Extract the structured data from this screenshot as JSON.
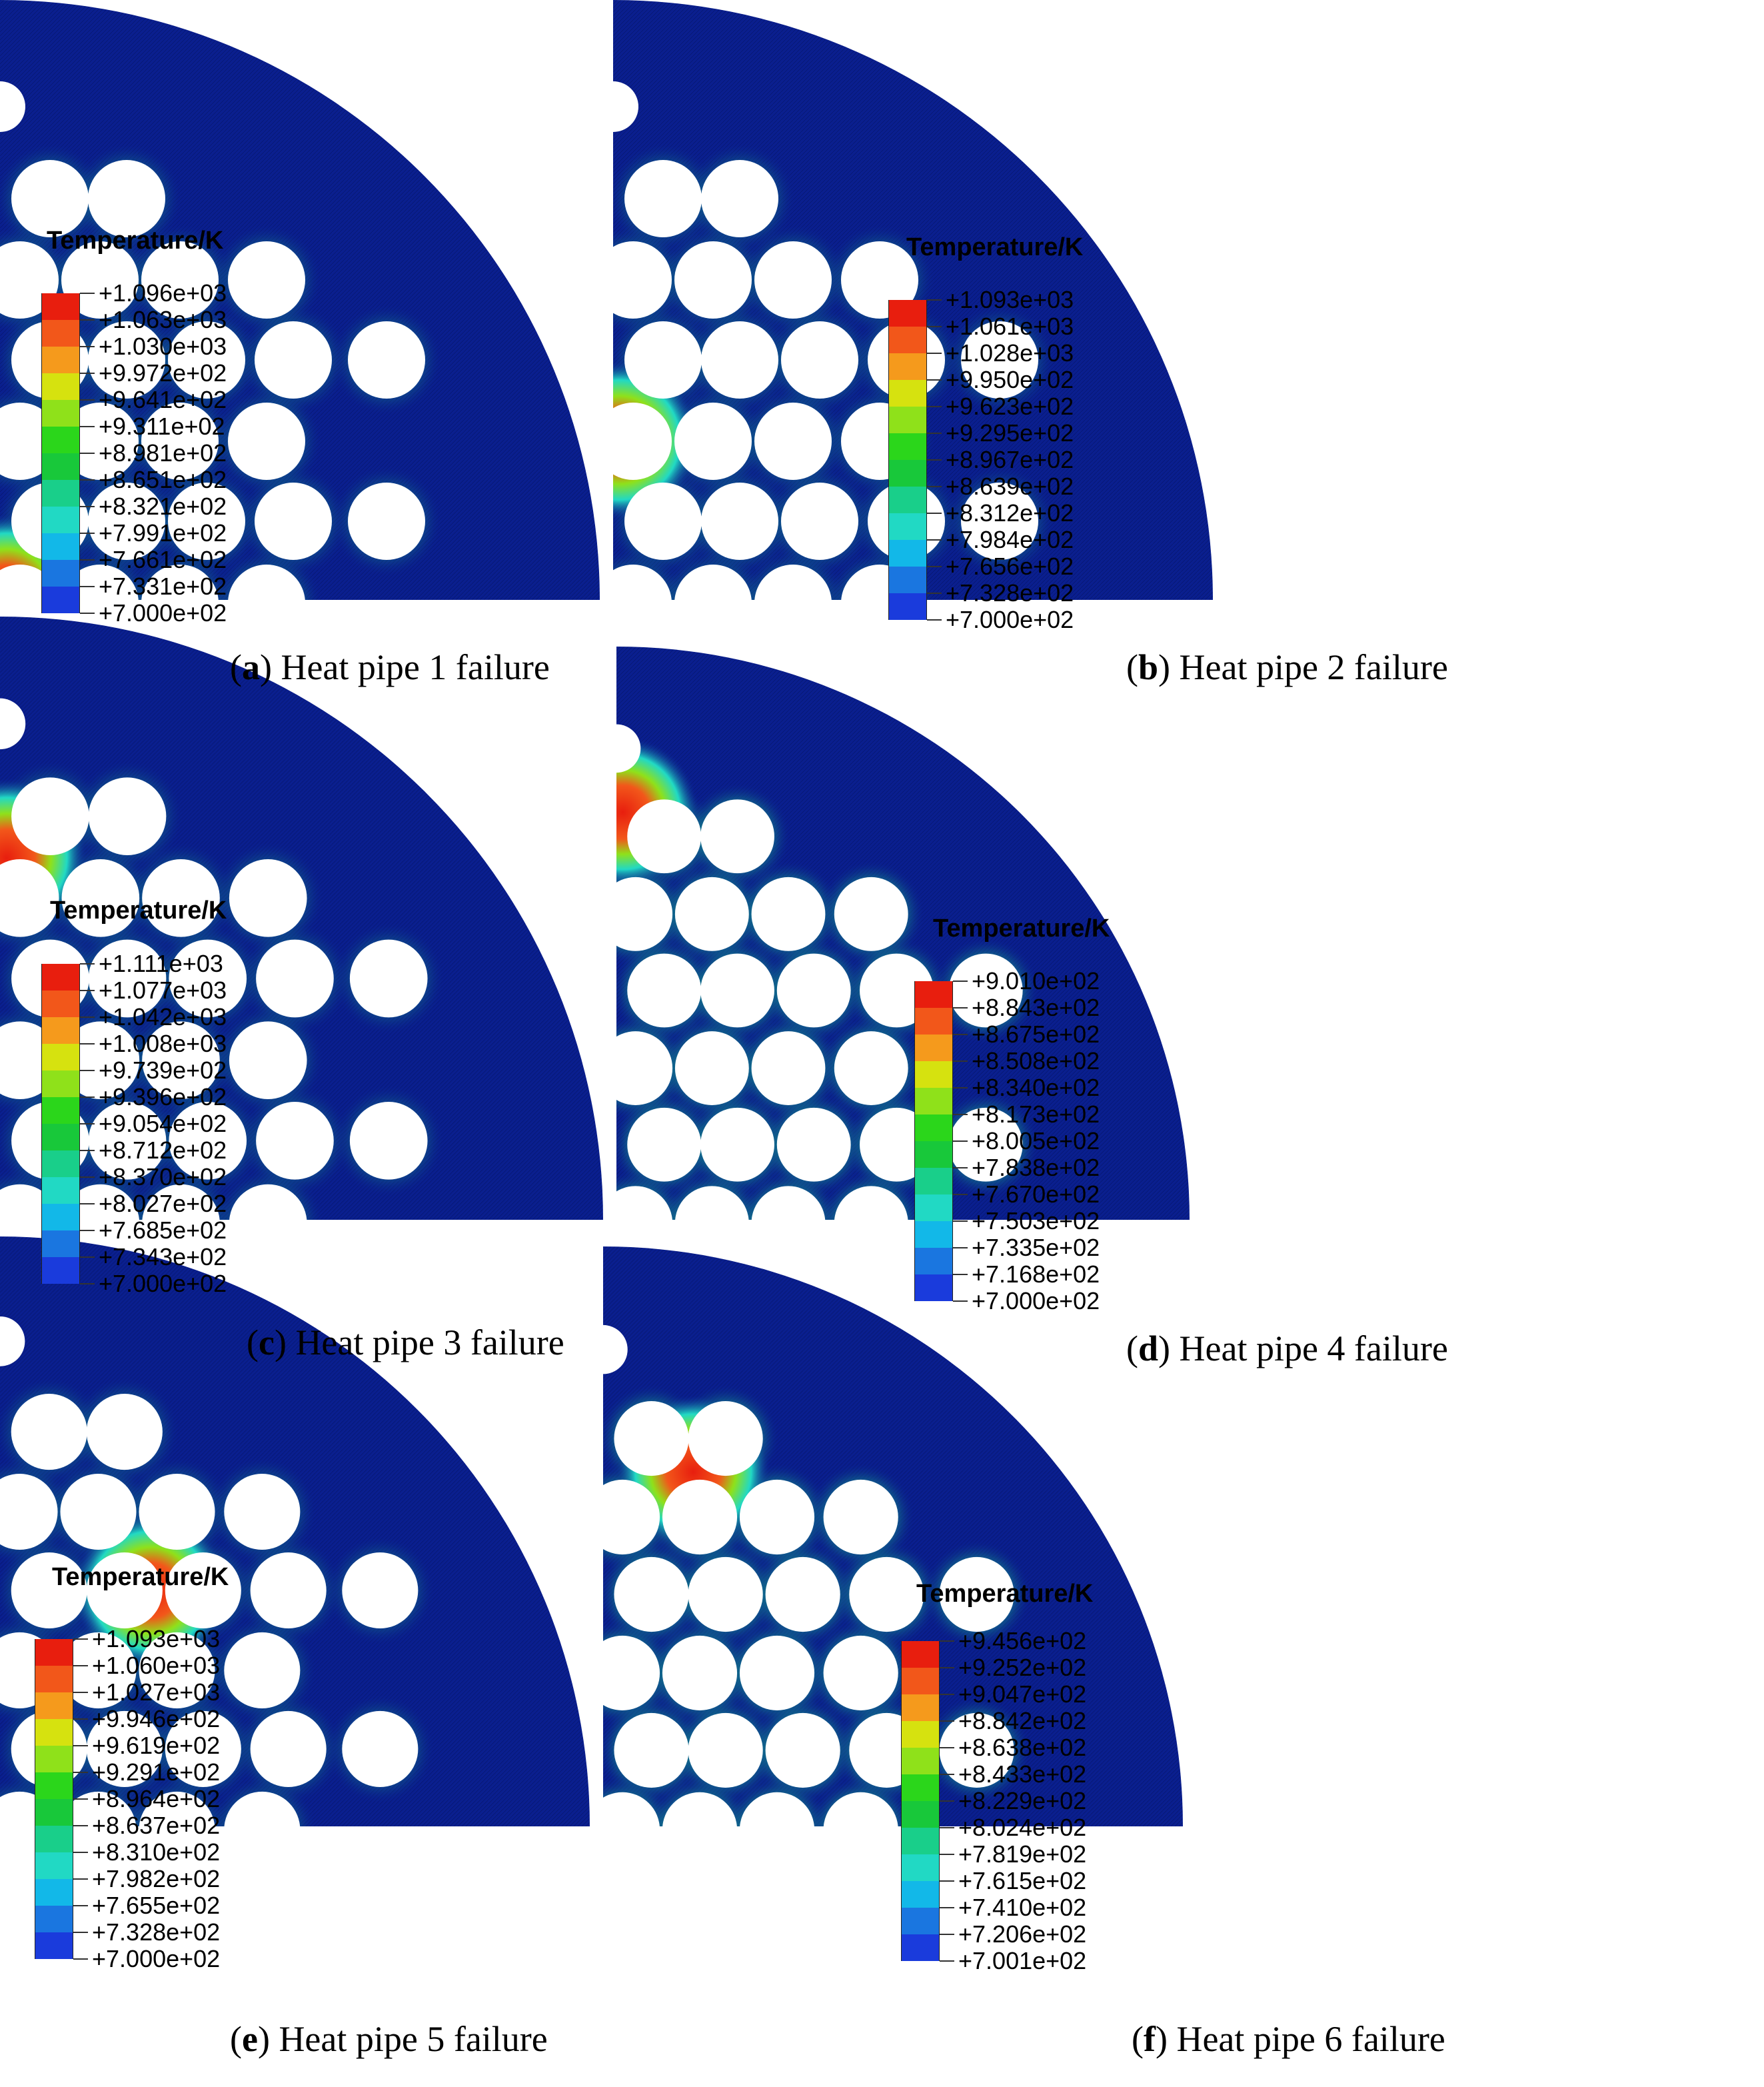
{
  "colors": {
    "background": "#0a1f8f",
    "scale": [
      "#e81e0e",
      "#f2571a",
      "#f59a1c",
      "#d6e20f",
      "#8fe11a",
      "#2bd61b",
      "#18c83a",
      "#19cf8a",
      "#21d9c4",
      "#12b8e8",
      "#1a76e0",
      "#1a3bdc",
      "#1212e6"
    ]
  },
  "panels": [
    {
      "id": "a",
      "legend_title": "Temperature/K",
      "legend_values": [
        "+1.096e+03",
        "+1.063e+03",
        "+1.030e+03",
        "+9.972e+02",
        "+9.641e+02",
        "+9.311e+02",
        "+8.981e+02",
        "+8.651e+02",
        "+8.321e+02",
        "+7.991e+02",
        "+7.661e+02",
        "+7.331e+02",
        "+7.000e+02"
      ],
      "caption_letter": "a",
      "caption_text": "Heat pipe 1 failure",
      "hotspot": "pipe-1"
    },
    {
      "id": "b",
      "legend_title": "Temperature/K",
      "legend_values": [
        "+1.093e+03",
        "+1.061e+03",
        "+1.028e+03",
        "+9.950e+02",
        "+9.623e+02",
        "+9.295e+02",
        "+8.967e+02",
        "+8.639e+02",
        "+8.312e+02",
        "+7.984e+02",
        "+7.656e+02",
        "+7.328e+02",
        "+7.000e+02"
      ],
      "caption_letter": "b",
      "caption_text": "Heat pipe 2 failure",
      "hotspot": "pipe-2"
    },
    {
      "id": "c",
      "legend_title": "Temperature/K",
      "legend_values": [
        "+1.111e+03",
        "+1.077e+03",
        "+1.042e+03",
        "+1.008e+03",
        "+9.739e+02",
        "+9.396e+02",
        "+9.054e+02",
        "+8.712e+02",
        "+8.370e+02",
        "+8.027e+02",
        "+7.685e+02",
        "+7.343e+02",
        "+7.000e+02"
      ],
      "caption_letter": "c",
      "caption_text": "Heat pipe 3 failure",
      "hotspot": "pipe-3"
    },
    {
      "id": "d",
      "legend_title": "Temperature/K",
      "legend_values": [
        "+9.010e+02",
        "+8.843e+02",
        "+8.675e+02",
        "+8.508e+02",
        "+8.340e+02",
        "+8.173e+02",
        "+8.005e+02",
        "+7.838e+02",
        "+7.670e+02",
        "+7.503e+02",
        "+7.335e+02",
        "+7.168e+02",
        "+7.000e+02"
      ],
      "caption_letter": "d",
      "caption_text": "Heat pipe 4 failure",
      "hotspot": "pipe-4"
    },
    {
      "id": "e",
      "legend_title": "Temperature/K",
      "legend_values": [
        "+1.093e+03",
        "+1.060e+03",
        "+1.027e+03",
        "+9.946e+02",
        "+9.619e+02",
        "+9.291e+02",
        "+8.964e+02",
        "+8.637e+02",
        "+8.310e+02",
        "+7.982e+02",
        "+7.655e+02",
        "+7.328e+02",
        "+7.000e+02"
      ],
      "caption_letter": "e",
      "caption_text": "Heat pipe 5 failure",
      "hotspot": "pipe-5"
    },
    {
      "id": "f",
      "legend_title": "Temperature/K",
      "legend_values": [
        "+9.456e+02",
        "+9.252e+02",
        "+9.047e+02",
        "+8.842e+02",
        "+8.638e+02",
        "+8.433e+02",
        "+8.229e+02",
        "+8.024e+02",
        "+7.819e+02",
        "+7.615e+02",
        "+7.410e+02",
        "+7.206e+02",
        "+7.001e+02"
      ],
      "caption_letter": "f",
      "caption_text": "Heat pipe 6 failure",
      "hotspot": "pipe-6"
    }
  ]
}
